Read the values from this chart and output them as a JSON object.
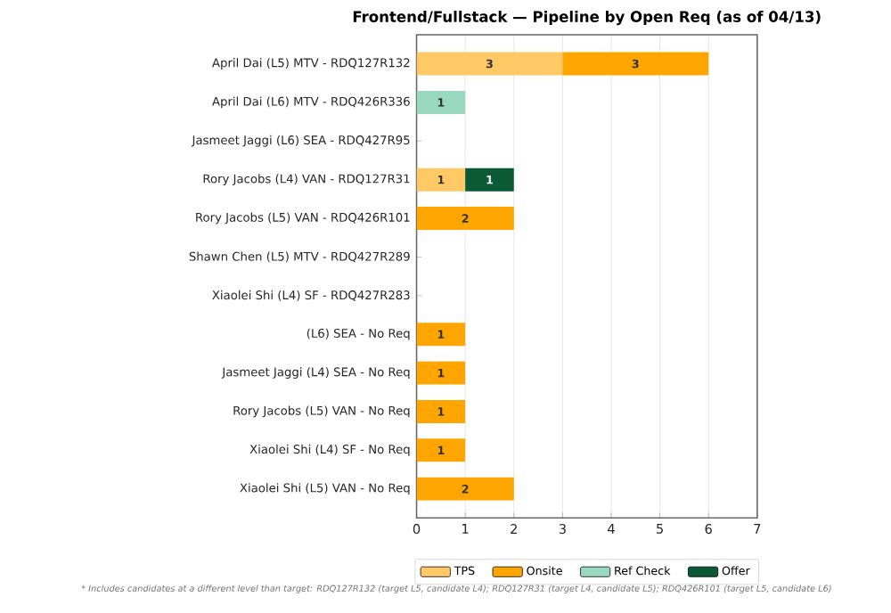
{
  "chart_data": {
    "type": "bar",
    "orientation": "horizontal",
    "stacked": true,
    "title": "Frontend/Fullstack — Pipeline by Open Req (as of 04/13)",
    "categories": [
      "April Dai (L5) MTV - RDQ127R132",
      "April Dai (L6) MTV - RDQ426R336",
      "Jasmeet Jaggi (L6) SEA - RDQ427R95",
      "Rory Jacobs (L4) VAN - RDQ127R31",
      "Rory Jacobs (L5) VAN - RDQ426R101",
      "Shawn Chen (L5) MTV - RDQ427R289",
      "Xiaolei Shi (L4) SF - RDQ427R283",
      "(L6) SEA - No Req",
      "Jasmeet Jaggi (L4) SEA - No Req",
      "Rory Jacobs (L5) VAN - No Req",
      "Xiaolei Shi (L4) SF - No Req",
      "Xiaolei Shi (L5) VAN - No Req"
    ],
    "series": [
      {
        "name": "TPS",
        "color": "#ffc966",
        "values": [
          3,
          null,
          null,
          1,
          null,
          null,
          null,
          null,
          null,
          null,
          null,
          null
        ]
      },
      {
        "name": "Onsite",
        "color": "#ffa500",
        "values": [
          3,
          null,
          null,
          null,
          2,
          null,
          null,
          1,
          1,
          1,
          1,
          2
        ]
      },
      {
        "name": "Ref Check",
        "color": "#99d8c0",
        "values": [
          null,
          1,
          null,
          null,
          null,
          null,
          null,
          null,
          null,
          null,
          null,
          null
        ]
      },
      {
        "name": "Offer",
        "color": "#0b5a35",
        "values": [
          null,
          null,
          null,
          1,
          null,
          null,
          null,
          null,
          null,
          null,
          null,
          null
        ]
      }
    ],
    "xlim": [
      0,
      7
    ],
    "xticks": [
      0,
      1,
      2,
      3,
      4,
      5,
      6,
      7
    ],
    "grid": "x",
    "legend": "bottom",
    "data_labels": true,
    "annotations": [
      "* Includes candidates at a different level than target: RDQ127R132 (target L5, candidate L4); RDQ127R31 (target L4, candidate L5); RDQ426R101 (target L5, candidate L6)"
    ]
  }
}
